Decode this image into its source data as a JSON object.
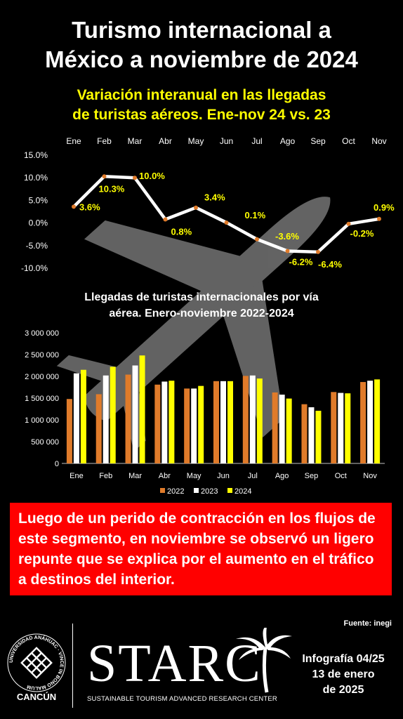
{
  "header": {
    "title_line1": "Turismo internacional a",
    "title_line2": "México a noviembre de 2024"
  },
  "chart_data": [
    {
      "type": "line",
      "title_line1": "Variación interanual en las llegadas",
      "title_line2": "de turistas aéreos. Ene-nov 24 vs. 23",
      "categories": [
        "Ene",
        "Feb",
        "Mar",
        "Abr",
        "May",
        "Jun",
        "Jul",
        "Ago",
        "Sep",
        "Oct",
        "Nov"
      ],
      "values": [
        3.6,
        10.3,
        10.0,
        0.8,
        3.4,
        0.1,
        -3.6,
        -6.2,
        -6.4,
        -0.2,
        0.9
      ],
      "data_labels": [
        "3.6%",
        "10.3%",
        "10.0%",
        "0.8%",
        "3.4%",
        "0.1%",
        "-3.6%",
        "-6.2%",
        "-6.4%",
        "-0.2%",
        "0.9%"
      ],
      "y_ticks": [
        15,
        10,
        5,
        0,
        -5,
        -10
      ],
      "y_tick_labels": [
        "15.0%",
        "10.0%",
        "5.0%",
        "0.0%",
        "-5.0%",
        "-10.0%"
      ],
      "ylim": [
        -10,
        15
      ],
      "x_axis_position": "top",
      "grid": false,
      "line_color": "#ffffff",
      "marker_color": "#e07b2a",
      "label_color": "#ffff00"
    },
    {
      "type": "bar",
      "title_line1": "Llegadas de turistas internacionales por vía",
      "title_line2": "aérea. Enero-noviembre 2022-2024",
      "categories": [
        "Ene",
        "Feb",
        "Mar",
        "Abr",
        "May",
        "Jun",
        "Jul",
        "Ago",
        "Sep",
        "Oct",
        "Nov"
      ],
      "series": [
        {
          "name": "2022",
          "color": "#e07b2a",
          "values": [
            1480000,
            1590000,
            2040000,
            1810000,
            1720000,
            1890000,
            2010000,
            1630000,
            1360000,
            1640000,
            1870000
          ]
        },
        {
          "name": "2023",
          "color": "#ffffff",
          "values": [
            2070000,
            2020000,
            2250000,
            1880000,
            1720000,
            1890000,
            2020000,
            1580000,
            1290000,
            1620000,
            1900000
          ]
        },
        {
          "name": "2024",
          "color": "#ffff00",
          "values": [
            2150000,
            2220000,
            2480000,
            1900000,
            1780000,
            1890000,
            1950000,
            1490000,
            1210000,
            1610000,
            1930000
          ]
        }
      ],
      "y_ticks": [
        0,
        500000,
        1000000,
        1500000,
        2000000,
        2500000,
        3000000
      ],
      "y_tick_labels": [
        "0",
        "500 000",
        "1 000 000",
        "1 500 000",
        "2 000 000",
        "2 500 000",
        "3 000 000"
      ],
      "ylim": [
        0,
        3000000
      ],
      "legend_position": "bottom",
      "grid": false
    }
  ],
  "note": {
    "text": "Luego de un perido de contracción en los flujos de este segmento, en noviembre se observó un ligero repunte que se explica por el aumento en el tráfico a destinos del interior.",
    "bg_color": "#ff0000"
  },
  "footer": {
    "source": "Fuente: inegi",
    "university_ring_text": "UNIVERSIDAD ANÁHUAC · VINCE IN BONO MALUM",
    "university_city": "CANCÚN",
    "brand": "STARC",
    "brand_subtitle": "SUSTAINABLE TOURISM ADVANCED RESEARCH CENTER",
    "info_line1": "Infografía 04/25",
    "info_line2": "13 de enero",
    "info_line3": "de 2025",
    "logo_icons": [
      "anahuac-seal-icon",
      "palm-tree-icon",
      "airplane-icon"
    ]
  }
}
